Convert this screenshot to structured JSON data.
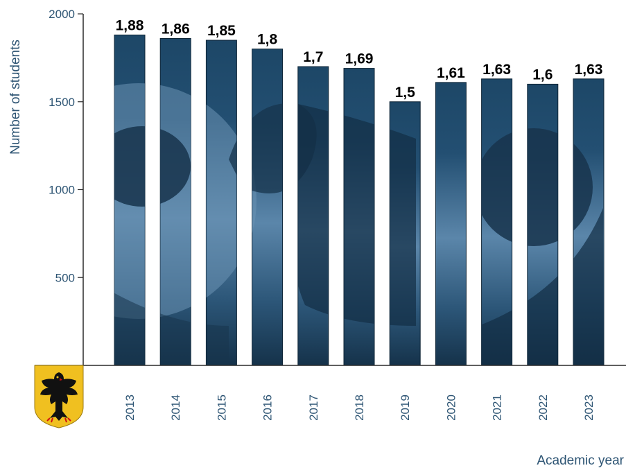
{
  "chart_data": {
    "type": "bar",
    "title": "",
    "xlabel": "Academic year",
    "ylabel": "Number of students",
    "categories": [
      "2013",
      "2014",
      "2015",
      "2016",
      "2017",
      "2018",
      "2019",
      "2020",
      "2021",
      "2022",
      "2023"
    ],
    "values": [
      1880,
      1860,
      1850,
      1800,
      1700,
      1690,
      1500,
      1610,
      1630,
      1600,
      1630
    ],
    "data_labels": [
      "1,88",
      "1,86",
      "1,85",
      "1,8",
      "1,7",
      "1,69",
      "1,5",
      "1,61",
      "1,63",
      "1,6",
      "1,63"
    ],
    "ylim": [
      0,
      2000
    ],
    "yticks": [
      2000,
      1500,
      1000,
      500
    ],
    "grid": false,
    "legend": "none"
  },
  "colors": {
    "bar_dark": "#1a3a55",
    "bar_mid": "#2a5a80",
    "bar_light": "#6f97b8",
    "axis": "#2a2a2a",
    "axis_text": "#2e5574",
    "data_label": "#000000"
  },
  "icons": {
    "emblem": "german-eagle-coat-of-arms-icon"
  }
}
